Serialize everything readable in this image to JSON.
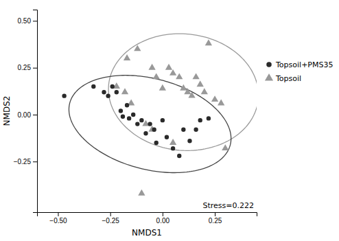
{
  "chart_data": {
    "type": "scatter",
    "xlabel": "NMDS1",
    "ylabel": "NMDS2",
    "xlim": [
      -0.6,
      0.45
    ],
    "ylim": [
      -0.52,
      0.56
    ],
    "xticks": [
      {
        "value": -0.5,
        "label": "−0.50"
      },
      {
        "value": -0.25,
        "label": "−0.25"
      },
      {
        "value": 0.0,
        "label": "0.00"
      },
      {
        "value": 0.25,
        "label": "0.25"
      }
    ],
    "yticks": [
      {
        "value": -0.25,
        "label": "−0.25"
      },
      {
        "value": 0.0,
        "label": "0.00"
      },
      {
        "value": 0.25,
        "label": "0.25"
      },
      {
        "value": 0.5,
        "label": "0.50"
      }
    ],
    "grid": false,
    "legend": "right",
    "annotation": "Stress=0.222",
    "series": [
      {
        "name": "Topsoil+PMS35",
        "color": "#2a2a2a",
        "marker": "circle",
        "x": [
          -0.47,
          -0.33,
          -0.28,
          -0.26,
          -0.24,
          -0.22,
          -0.2,
          -0.19,
          -0.17,
          -0.16,
          -0.14,
          -0.12,
          -0.1,
          -0.08,
          -0.06,
          -0.04,
          -0.03,
          0.0,
          0.02,
          0.05,
          0.08,
          0.1,
          0.13,
          0.16,
          0.18,
          0.22
        ],
        "values": [
          0.1,
          0.15,
          0.12,
          0.1,
          0.15,
          0.12,
          0.02,
          -0.01,
          0.05,
          -0.02,
          0.0,
          -0.05,
          -0.03,
          -0.1,
          -0.05,
          -0.08,
          -0.15,
          -0.03,
          -0.12,
          -0.18,
          -0.22,
          -0.08,
          -0.14,
          -0.08,
          -0.03,
          -0.02
        ],
        "ellipse": {
          "cx": -0.06,
          "cy": -0.05,
          "width": 0.8,
          "height": 0.48,
          "angle": -18,
          "color": "#444444"
        }
      },
      {
        "name": "Topsoil",
        "color": "#999999",
        "marker": "triangle",
        "x": [
          -0.22,
          -0.18,
          -0.17,
          -0.12,
          -0.05,
          -0.03,
          0.0,
          0.03,
          0.05,
          0.08,
          0.1,
          0.12,
          0.14,
          0.16,
          0.18,
          0.2,
          0.22,
          0.25,
          0.28,
          0.3,
          -0.05,
          0.05,
          -0.08,
          -0.15,
          -0.1
        ],
        "values": [
          0.15,
          0.12,
          0.3,
          0.35,
          0.25,
          0.2,
          0.14,
          0.25,
          0.22,
          0.2,
          0.14,
          0.12,
          0.1,
          0.2,
          0.16,
          0.12,
          0.38,
          0.08,
          0.06,
          -0.18,
          -0.08,
          -0.15,
          -0.05,
          0.06,
          -0.42
        ],
        "ellipse": {
          "cx": 0.1,
          "cy": 0.12,
          "width": 0.72,
          "height": 0.62,
          "angle": -10,
          "color": "#999999"
        }
      }
    ]
  }
}
